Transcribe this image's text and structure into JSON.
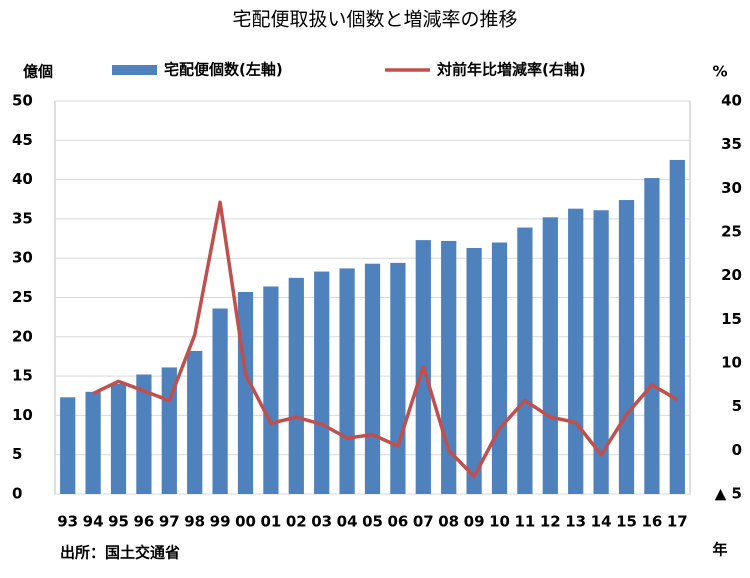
{
  "chart_data": {
    "type": "bar_line",
    "title": "宅配便取扱い個数と増減率の推移",
    "y_label": "億個",
    "y2_label": "%",
    "x_label": "年",
    "source": "出所：国土交通省",
    "categories": [
      "93",
      "94",
      "95",
      "96",
      "97",
      "98",
      "99",
      "00",
      "01",
      "02",
      "03",
      "04",
      "05",
      "06",
      "07",
      "08",
      "09",
      "10",
      "11",
      "12",
      "13",
      "14",
      "15",
      "16",
      "17"
    ],
    "series": [
      {
        "name": "宅配便個数(左軸)",
        "color": "#4f81bd",
        "kind": "bar",
        "values": [
          12.3,
          13.0,
          14.0,
          15.2,
          16.1,
          18.2,
          23.6,
          25.7,
          26.4,
          27.5,
          28.3,
          28.7,
          29.3,
          29.4,
          32.3,
          32.2,
          31.3,
          32.0,
          33.9,
          35.2,
          36.3,
          36.1,
          37.4,
          40.2,
          42.5
        ]
      },
      {
        "name": "対前年比増減率(右軸)",
        "color": "#c0504d",
        "kind": "line",
        "axis": "y2",
        "values": [
          null,
          6.5,
          7.9,
          6.8,
          5.7,
          13.2,
          28.4,
          8.7,
          3.1,
          3.8,
          3.0,
          1.4,
          1.8,
          0.5,
          9.6,
          0,
          -3.0,
          2.5,
          5.7,
          3.8,
          3.2,
          -0.5,
          4.1,
          7.5,
          5.8
        ]
      }
    ],
    "ylim": [
      0,
      50
    ],
    "yticks": [
      0,
      5,
      10,
      15,
      20,
      25,
      30,
      35,
      40,
      45,
      50
    ],
    "y2lim": [
      -5,
      40
    ],
    "y2ticks": [
      {
        "value": -5,
        "label": "▲ 5"
      },
      0,
      5,
      10,
      15,
      20,
      25,
      30,
      35,
      40
    ],
    "grid": true
  }
}
